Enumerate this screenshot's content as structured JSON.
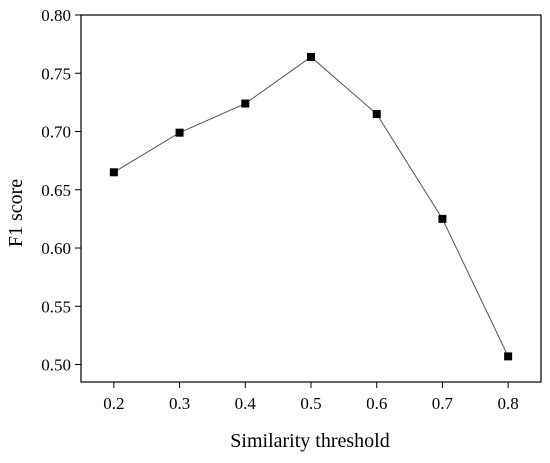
{
  "chart_data": {
    "type": "line",
    "title": "",
    "xlabel": "Similarity threshold",
    "ylabel": "F1 score",
    "x": [
      0.2,
      0.3,
      0.4,
      0.5,
      0.6,
      0.7,
      0.8
    ],
    "series": [
      {
        "values": [
          0.665,
          0.699,
          0.724,
          0.764,
          0.715,
          0.625,
          0.507
        ],
        "marker": "square",
        "color": "#000000",
        "line_color": "#555555"
      }
    ],
    "xlim": [
      0.15,
      0.85
    ],
    "ylim": [
      0.485,
      0.8
    ],
    "x_ticks": [
      "0.2",
      "0.3",
      "0.4",
      "0.5",
      "0.6",
      "0.7",
      "0.8"
    ],
    "y_ticks": [
      "0.50",
      "0.55",
      "0.60",
      "0.65",
      "0.70",
      "0.75",
      "0.80"
    ],
    "grid": false,
    "legend": "none"
  }
}
